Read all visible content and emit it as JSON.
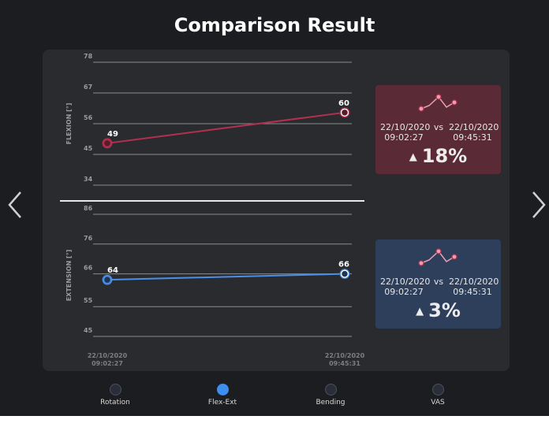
{
  "page": {
    "title": "Comparison Result"
  },
  "colors": {
    "flexion": "#b5304f",
    "extension": "#4a8fe8",
    "active_tab": "#3c8ef0"
  },
  "icons": {
    "prev": "chevron-left-icon",
    "next": "chevron-right-icon",
    "trend": "sparkline-icon",
    "up": "triangle-up-icon"
  },
  "chart_data": [
    {
      "type": "line",
      "ylabel": "FLEXION [°]",
      "yticks": [
        78,
        67,
        56,
        45,
        34
      ],
      "ylim": [
        34,
        78
      ],
      "x": [
        "22/10/2020 09:02:27",
        "22/10/2020 09:45:31"
      ],
      "series": [
        {
          "values": [
            49,
            60
          ]
        }
      ],
      "grid": true
    },
    {
      "type": "line",
      "ylabel": "EXTENSION [°]",
      "yticks": [
        86,
        76,
        66,
        55,
        45
      ],
      "ylim": [
        45,
        86
      ],
      "x": [
        "22/10/2020 09:02:27",
        "22/10/2020 09:45:31"
      ],
      "xticklabels": [
        [
          "22/10/2020",
          "09:02:27"
        ],
        [
          "22/10/2020",
          "09:45:31"
        ]
      ],
      "series": [
        {
          "values": [
            64,
            66
          ]
        }
      ],
      "grid": true
    }
  ],
  "cards": {
    "flexion": {
      "date1": "22/10/2020",
      "time1": "09:02:27",
      "vs": "vs",
      "date2": "22/10/2020",
      "time2": "09:45:31",
      "change": "18%"
    },
    "extension": {
      "date1": "22/10/2020",
      "time1": "09:02:27",
      "vs": "vs",
      "date2": "22/10/2020",
      "time2": "09:45:31",
      "change": "3%"
    }
  },
  "tabs": [
    {
      "label": "Rotation",
      "active": false
    },
    {
      "label": "Flex-Ext",
      "active": true
    },
    {
      "label": "Bending",
      "active": false
    },
    {
      "label": "VAS",
      "active": false
    }
  ]
}
